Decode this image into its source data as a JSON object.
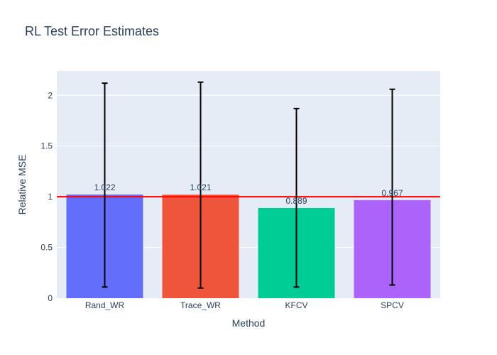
{
  "chart_data": {
    "type": "bar",
    "title": "RL Test Error Estimates",
    "xlabel": "Method",
    "ylabel": "Relative MSE",
    "categories": [
      "Rand_WR",
      "Trace_WR",
      "KFCV",
      "SPCV"
    ],
    "values": [
      1.022,
      1.021,
      0.889,
      0.967
    ],
    "value_labels": [
      "1.022",
      "1.021",
      "0.889",
      "0.967"
    ],
    "error_low": [
      0.11,
      0.1,
      0.11,
      0.13
    ],
    "error_high": [
      2.12,
      2.13,
      1.87,
      2.06
    ],
    "colors": [
      "#636efa",
      "#ef553b",
      "#00cc96",
      "#ab63fa"
    ],
    "ylim": [
      0,
      2.24
    ],
    "yticks": [
      0,
      0.5,
      1,
      1.5,
      2
    ],
    "ytick_labels": [
      "0",
      "0.5",
      "1",
      "1.5",
      "2"
    ],
    "reference_line": {
      "value": 1,
      "color": "#ff0000"
    },
    "grid": true,
    "legend": "none",
    "plot_bg": "#e5ecf6"
  }
}
